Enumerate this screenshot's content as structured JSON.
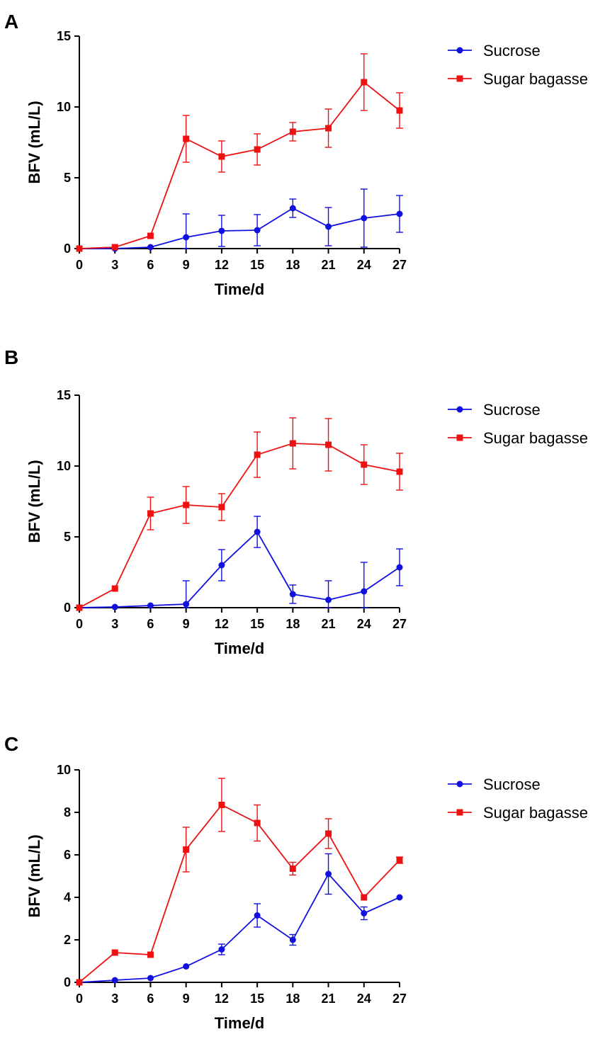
{
  "chart_data": [
    {
      "type": "line",
      "panel_label": "A",
      "xlabel": "Time/d",
      "ylabel": "BFV (mL/L)",
      "x": [
        0,
        3,
        6,
        9,
        12,
        15,
        18,
        21,
        24,
        27
      ],
      "xticks": [
        "0",
        "3",
        "6",
        "9",
        "12",
        "15",
        "18",
        "21",
        "24",
        "27"
      ],
      "ylim": [
        0,
        15
      ],
      "yticks": [
        "0",
        "5",
        "10",
        "15"
      ],
      "legend_position": "top-right",
      "series": [
        {
          "name": "Sucrose",
          "color": "#1010e0",
          "marker": "circle",
          "values": [
            0,
            0,
            0.1,
            0.8,
            1.25,
            1.3,
            2.85,
            1.55,
            2.15,
            2.45
          ],
          "errors": [
            0,
            0,
            0,
            1.65,
            1.1,
            1.1,
            0.65,
            1.35,
            2.05,
            1.3
          ]
        },
        {
          "name": "Sugar bagasse",
          "color": "#ee1111",
          "marker": "square",
          "values": [
            0,
            0.1,
            0.9,
            7.75,
            6.5,
            7.0,
            8.25,
            8.5,
            11.75,
            9.75
          ],
          "errors": [
            0,
            0,
            0,
            1.65,
            1.1,
            1.1,
            0.65,
            1.35,
            2.0,
            1.25
          ]
        }
      ]
    },
    {
      "type": "line",
      "panel_label": "B",
      "xlabel": "Time/d",
      "ylabel": "BFV (mL/L)",
      "x": [
        0,
        3,
        6,
        9,
        12,
        15,
        18,
        21,
        24,
        27
      ],
      "xticks": [
        "0",
        "3",
        "6",
        "9",
        "12",
        "15",
        "18",
        "21",
        "24",
        "27"
      ],
      "ylim": [
        0,
        15
      ],
      "yticks": [
        "0",
        "5",
        "10",
        "15"
      ],
      "legend_position": "top-right",
      "series": [
        {
          "name": "Sucrose",
          "color": "#1010e0",
          "marker": "circle",
          "values": [
            0,
            0.05,
            0.15,
            0.25,
            3.0,
            5.35,
            0.95,
            0.55,
            1.15,
            2.85
          ],
          "errors": [
            0,
            0,
            0,
            1.65,
            1.1,
            1.1,
            0.65,
            1.35,
            2.05,
            1.3
          ]
        },
        {
          "name": "Sugar bagasse",
          "color": "#ee1111",
          "marker": "square",
          "values": [
            0,
            1.35,
            6.65,
            7.25,
            7.1,
            10.8,
            11.6,
            11.5,
            10.1,
            9.6
          ],
          "errors": [
            0,
            0,
            1.15,
            1.3,
            0.95,
            1.6,
            1.8,
            1.85,
            1.4,
            1.3
          ]
        }
      ]
    },
    {
      "type": "line",
      "panel_label": "C",
      "xlabel": "Time/d",
      "ylabel": "BFV (mL/L)",
      "x": [
        0,
        3,
        6,
        9,
        12,
        15,
        18,
        21,
        24,
        27
      ],
      "xticks": [
        "0",
        "3",
        "6",
        "9",
        "12",
        "15",
        "18",
        "21",
        "24",
        "27"
      ],
      "ylim": [
        0,
        10
      ],
      "yticks": [
        "0",
        "2",
        "4",
        "6",
        "8",
        "10"
      ],
      "legend_position": "top-right",
      "series": [
        {
          "name": "Sucrose",
          "color": "#1010e0",
          "marker": "circle",
          "values": [
            0,
            0.1,
            0.2,
            0.75,
            1.55,
            3.15,
            2.0,
            5.1,
            3.25,
            4.0
          ],
          "errors": [
            0,
            0,
            0,
            0,
            0.25,
            0.55,
            0.25,
            0.95,
            0.3,
            0
          ]
        },
        {
          "name": "Sugar bagasse",
          "color": "#ee1111",
          "marker": "square",
          "values": [
            0,
            1.4,
            1.3,
            6.25,
            8.35,
            7.5,
            5.35,
            7.0,
            4.0,
            5.75
          ],
          "errors": [
            0,
            0,
            0,
            1.05,
            1.25,
            0.85,
            0.3,
            0.7,
            0,
            0.15
          ]
        }
      ]
    }
  ]
}
